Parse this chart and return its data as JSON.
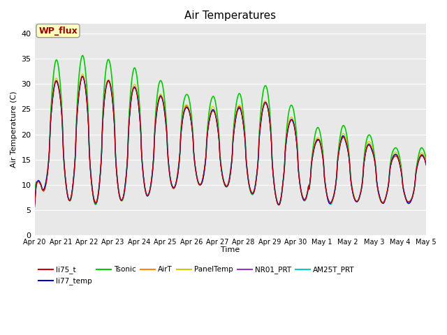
{
  "title": "Air Temperatures",
  "xlabel": "Time",
  "ylabel": "Air Temperature (C)",
  "ylim": [
    0,
    42
  ],
  "yticks": [
    0,
    5,
    10,
    15,
    20,
    25,
    30,
    35,
    40
  ],
  "n_days": 15,
  "background_color": "#e8e8e8",
  "x_tick_labels": [
    "Apr 20",
    "Apr 21",
    "Apr 22",
    "Apr 23",
    "Apr 24",
    "Apr 25",
    "Apr 26",
    "Apr 27",
    "Apr 28",
    "Apr 29",
    "Apr 30",
    "May 1",
    "May 2",
    "May 3",
    "May 4",
    "May 5"
  ],
  "legend_items": [
    {
      "label": "li75_t",
      "color": "#cc0000"
    },
    {
      "label": "li77_temp",
      "color": "#0000cc"
    },
    {
      "label": "Tsonic",
      "color": "#00cc00"
    },
    {
      "label": "AirT",
      "color": "#ff8800"
    },
    {
      "label": "PanelTemp",
      "color": "#cccc00"
    },
    {
      "label": "NR01_PRT",
      "color": "#9933cc"
    },
    {
      "label": "AM25T_PRT",
      "color": "#00cccc"
    }
  ],
  "annotation_text": "WP_flux"
}
